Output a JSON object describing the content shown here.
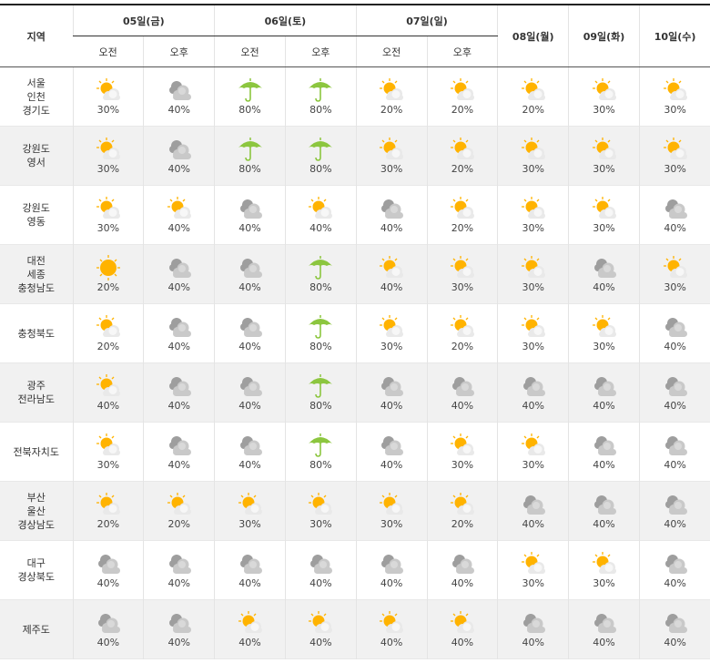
{
  "header": {
    "region_label": "지역",
    "days": [
      {
        "label": "05일(금)",
        "split": true
      },
      {
        "label": "06일(토)",
        "split": true
      },
      {
        "label": "07일(일)",
        "split": true
      },
      {
        "label": "08일(월)",
        "split": false
      },
      {
        "label": "09일(화)",
        "split": false
      },
      {
        "label": "10일(수)",
        "split": false
      }
    ],
    "am": "오전",
    "pm": "오후"
  },
  "icon_legend": {
    "ps": "partly-sunny-icon",
    "cl": "cloudy-icon",
    "rn": "rain-umbrella-icon",
    "sn": "sunny-icon"
  },
  "rows": [
    {
      "region": [
        "서울",
        "인천",
        "경기도"
      ],
      "cells": [
        [
          "ps",
          "30%"
        ],
        [
          "cl",
          "40%"
        ],
        [
          "rn",
          "80%"
        ],
        [
          "rn",
          "80%"
        ],
        [
          "ps",
          "20%"
        ],
        [
          "ps",
          "20%"
        ],
        [
          "ps",
          "20%"
        ],
        [
          "ps",
          "30%"
        ],
        [
          "ps",
          "30%"
        ]
      ]
    },
    {
      "region": [
        "강원도",
        "영서"
      ],
      "cells": [
        [
          "ps",
          "30%"
        ],
        [
          "cl",
          "40%"
        ],
        [
          "rn",
          "80%"
        ],
        [
          "rn",
          "80%"
        ],
        [
          "ps",
          "30%"
        ],
        [
          "ps",
          "20%"
        ],
        [
          "ps",
          "30%"
        ],
        [
          "ps",
          "30%"
        ],
        [
          "ps",
          "30%"
        ]
      ]
    },
    {
      "region": [
        "강원도",
        "영동"
      ],
      "cells": [
        [
          "ps",
          "30%"
        ],
        [
          "ps",
          "40%"
        ],
        [
          "cl",
          "40%"
        ],
        [
          "ps",
          "40%"
        ],
        [
          "cl",
          "40%"
        ],
        [
          "ps",
          "20%"
        ],
        [
          "ps",
          "30%"
        ],
        [
          "ps",
          "30%"
        ],
        [
          "cl",
          "40%"
        ]
      ]
    },
    {
      "region": [
        "대전",
        "세종",
        "충청남도"
      ],
      "cells": [
        [
          "sn",
          "20%"
        ],
        [
          "cl",
          "40%"
        ],
        [
          "cl",
          "40%"
        ],
        [
          "rn",
          "80%"
        ],
        [
          "ps",
          "40%"
        ],
        [
          "ps",
          "30%"
        ],
        [
          "ps",
          "30%"
        ],
        [
          "cl",
          "40%"
        ],
        [
          "ps",
          "30%"
        ]
      ]
    },
    {
      "region": [
        "충청북도"
      ],
      "cells": [
        [
          "ps",
          "20%"
        ],
        [
          "cl",
          "40%"
        ],
        [
          "cl",
          "40%"
        ],
        [
          "rn",
          "80%"
        ],
        [
          "ps",
          "30%"
        ],
        [
          "ps",
          "20%"
        ],
        [
          "ps",
          "30%"
        ],
        [
          "ps",
          "30%"
        ],
        [
          "cl",
          "40%"
        ]
      ]
    },
    {
      "region": [
        "광주",
        "전라남도"
      ],
      "cells": [
        [
          "ps",
          "40%"
        ],
        [
          "cl",
          "40%"
        ],
        [
          "cl",
          "40%"
        ],
        [
          "rn",
          "80%"
        ],
        [
          "cl",
          "40%"
        ],
        [
          "cl",
          "40%"
        ],
        [
          "cl",
          "40%"
        ],
        [
          "cl",
          "40%"
        ],
        [
          "cl",
          "40%"
        ]
      ]
    },
    {
      "region": [
        "전북자치도"
      ],
      "cells": [
        [
          "ps",
          "30%"
        ],
        [
          "cl",
          "40%"
        ],
        [
          "cl",
          "40%"
        ],
        [
          "rn",
          "80%"
        ],
        [
          "cl",
          "40%"
        ],
        [
          "ps",
          "30%"
        ],
        [
          "ps",
          "30%"
        ],
        [
          "cl",
          "40%"
        ],
        [
          "cl",
          "40%"
        ]
      ]
    },
    {
      "region": [
        "부산",
        "울산",
        "경상남도"
      ],
      "cells": [
        [
          "ps",
          "20%"
        ],
        [
          "ps",
          "20%"
        ],
        [
          "ps",
          "30%"
        ],
        [
          "ps",
          "30%"
        ],
        [
          "ps",
          "30%"
        ],
        [
          "ps",
          "20%"
        ],
        [
          "cl",
          "40%"
        ],
        [
          "cl",
          "40%"
        ],
        [
          "cl",
          "40%"
        ]
      ]
    },
    {
      "region": [
        "대구",
        "경상북도"
      ],
      "cells": [
        [
          "cl",
          "40%"
        ],
        [
          "cl",
          "40%"
        ],
        [
          "cl",
          "40%"
        ],
        [
          "cl",
          "40%"
        ],
        [
          "cl",
          "40%"
        ],
        [
          "cl",
          "40%"
        ],
        [
          "ps",
          "30%"
        ],
        [
          "ps",
          "30%"
        ],
        [
          "cl",
          "40%"
        ]
      ]
    },
    {
      "region": [
        "제주도"
      ],
      "cells": [
        [
          "cl",
          "40%"
        ],
        [
          "cl",
          "40%"
        ],
        [
          "ps",
          "40%"
        ],
        [
          "ps",
          "40%"
        ],
        [
          "ps",
          "40%"
        ],
        [
          "ps",
          "40%"
        ],
        [
          "cl",
          "40%"
        ],
        [
          "cl",
          "40%"
        ],
        [
          "cl",
          "40%"
        ]
      ]
    }
  ],
  "colors": {
    "sun": "#ffb300",
    "cloud": "#c9c9c9",
    "cloud_dark": "#9e9e9e",
    "umbrella": "#8cc63f"
  }
}
